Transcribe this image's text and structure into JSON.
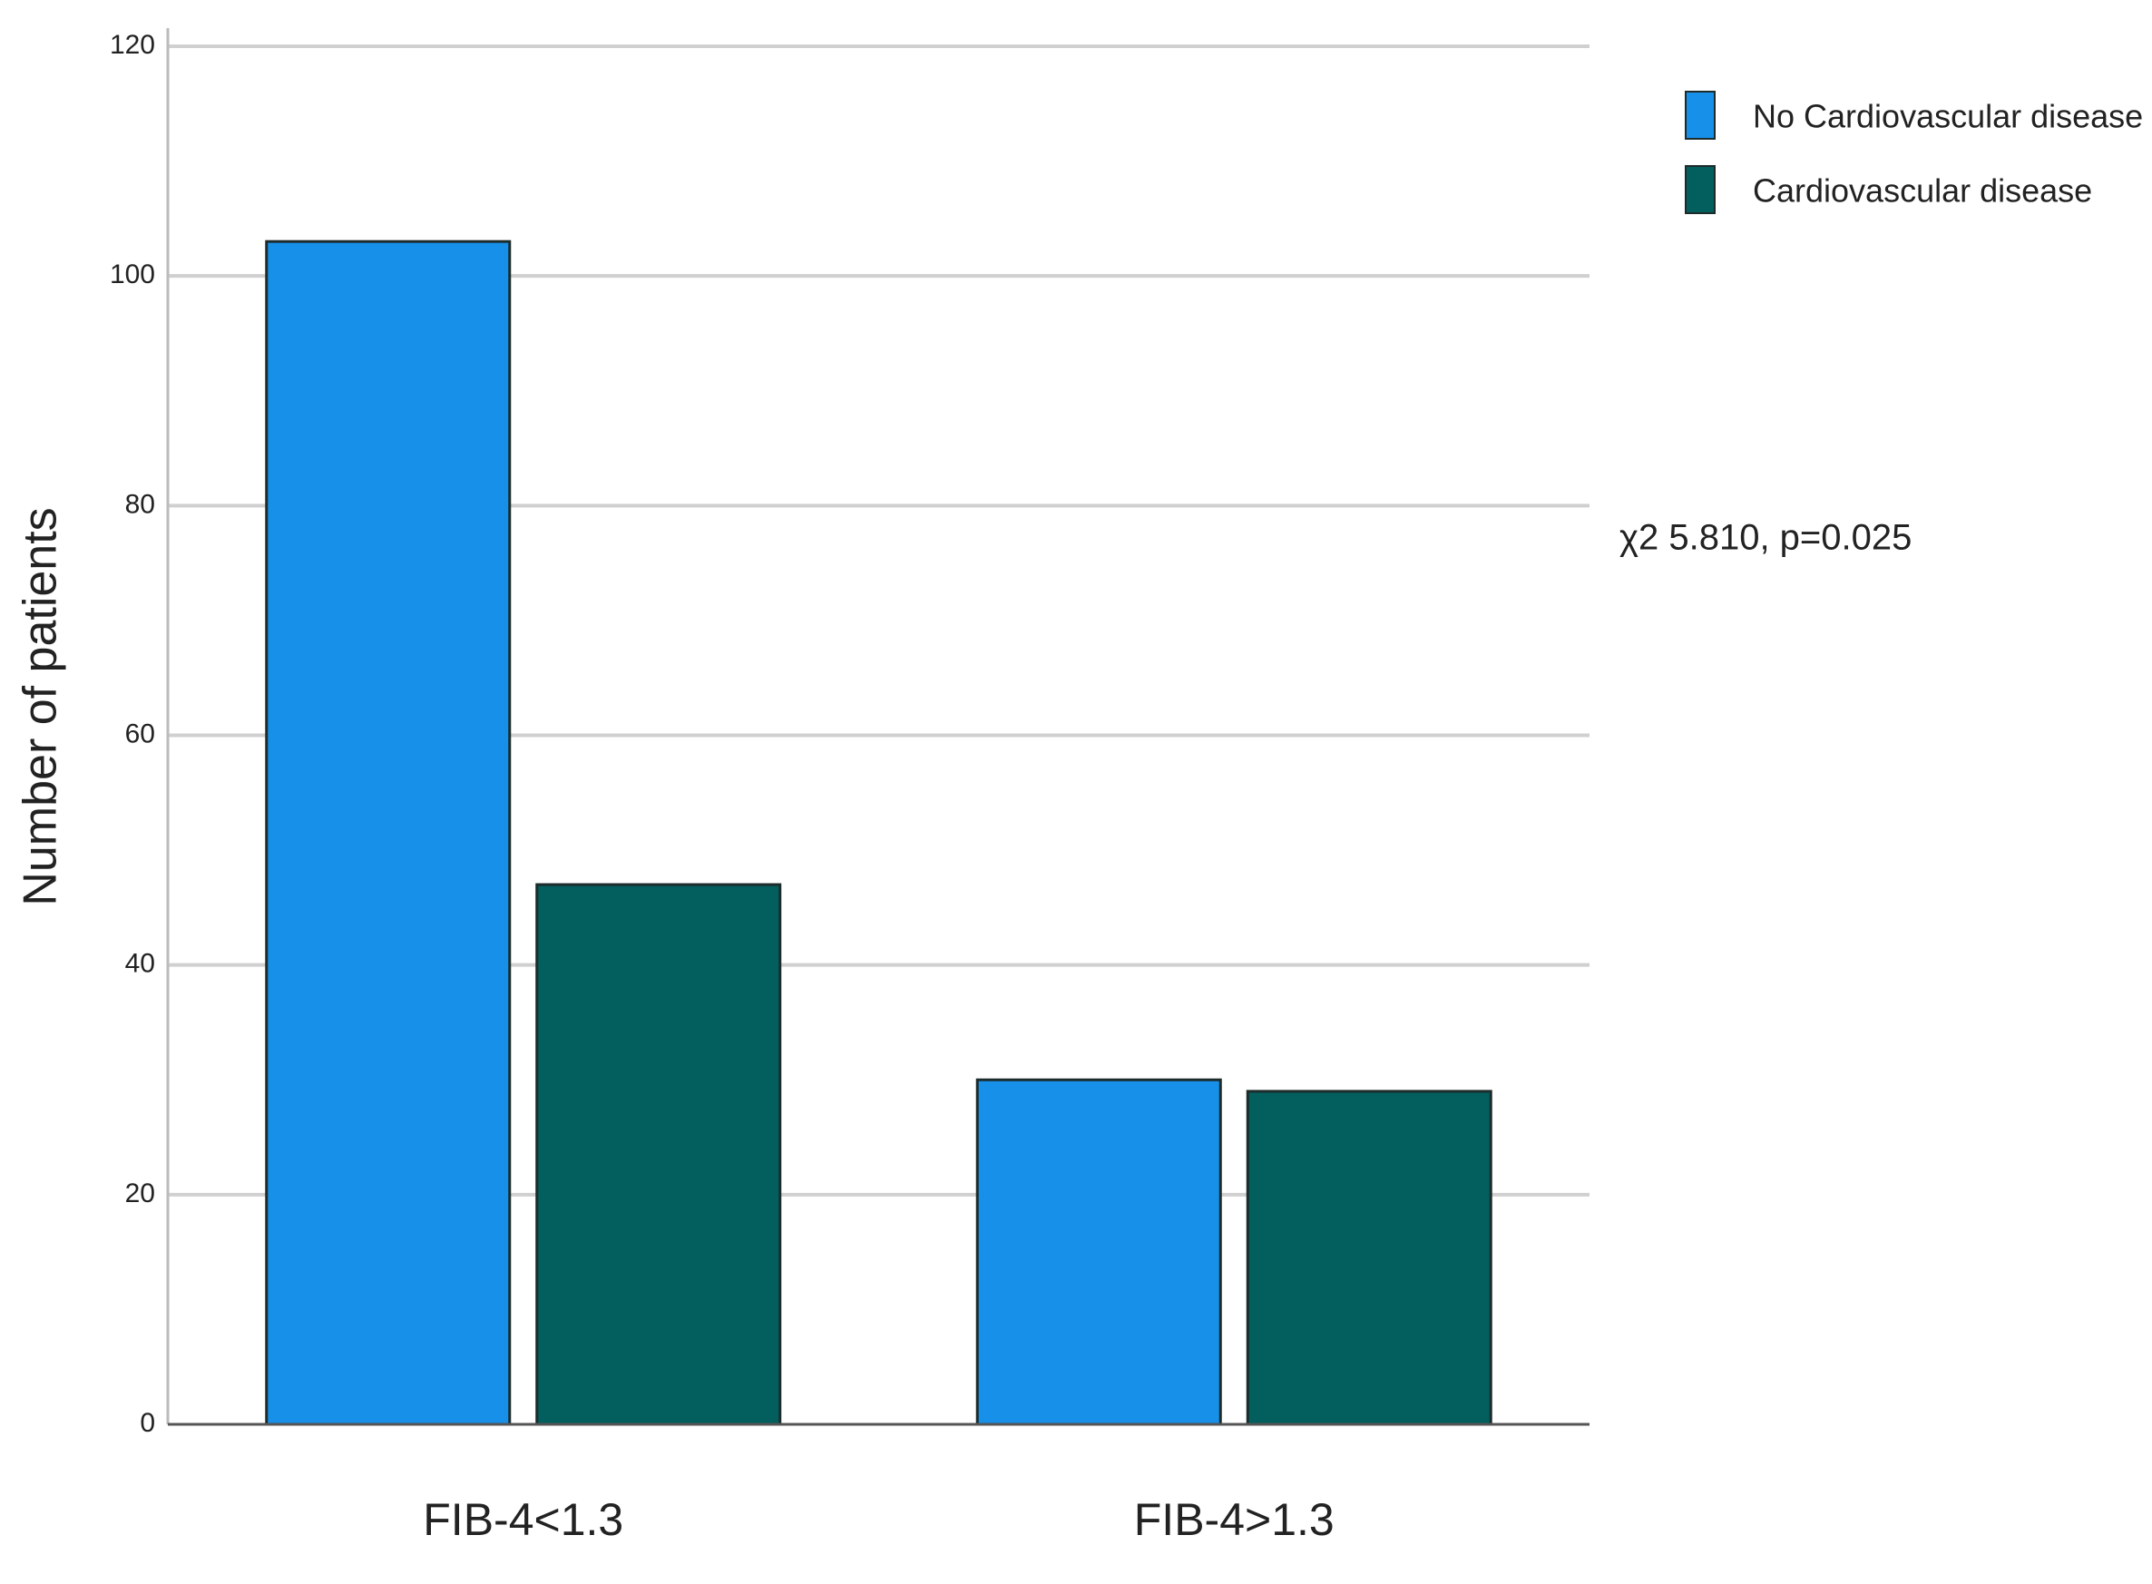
{
  "chart_data": {
    "type": "bar",
    "y_label": "Number of patients",
    "annotation": "χ2 5.810, p=0.025",
    "categories": [
      "FIB-4<1.3",
      "FIB-4>1.3"
    ],
    "series": [
      {
        "name": "No Cardiovascular disease",
        "color": "#1690e8",
        "values": [
          103,
          30
        ]
      },
      {
        "name": "Cardiovascular disease",
        "color": "#035e5e",
        "values": [
          47,
          29
        ]
      }
    ],
    "ylim": [
      0,
      120
    ],
    "yticks": [
      0,
      20,
      40,
      60,
      80,
      100,
      120
    ],
    "grid": true,
    "legend": "top-right"
  }
}
